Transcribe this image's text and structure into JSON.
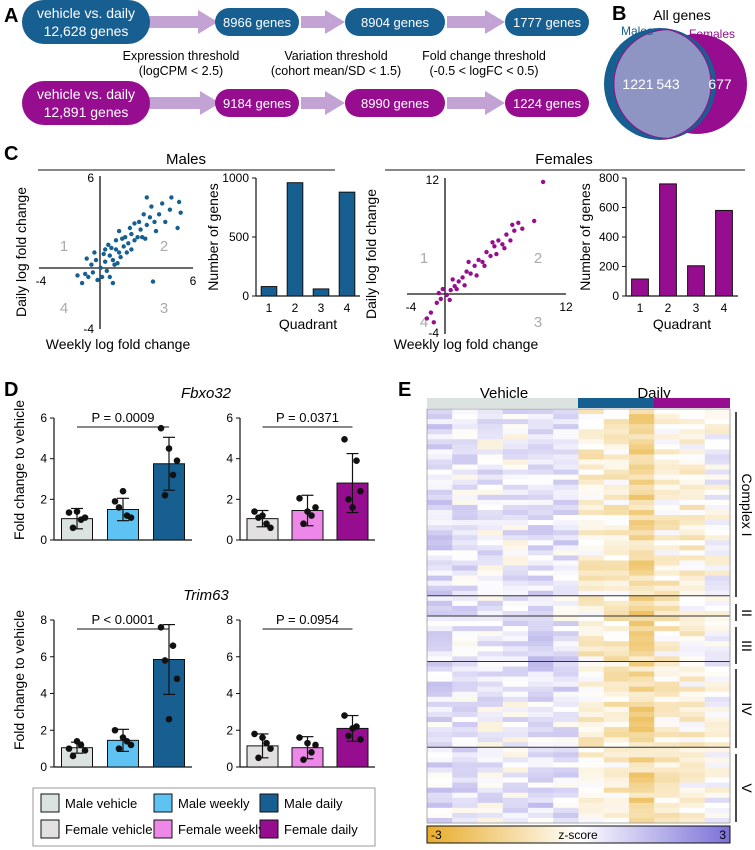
{
  "colors": {
    "male": "#175f91",
    "female": "#960e8f",
    "male_light": "#5ec2f2",
    "female_light": "#ee88e8",
    "vehicle_male": "#dbe3e1",
    "vehicle_female": "#e3e0e1",
    "arrow": "#c3a3d4",
    "overlap": "#8f95c2",
    "axis": "#111111",
    "quadrant_label": "#aaaaaa",
    "heat_low": "#e8ac2a",
    "heat_mid": "#ffffff",
    "heat_high": "#7a70d8"
  },
  "panelA": {
    "label": "A",
    "rows": [
      {
        "key": "male",
        "start_line1": "vehicle vs. daily",
        "start_line2": "12,628 genes",
        "steps": [
          "8966 genes",
          "8904 genes",
          "1777 genes"
        ]
      },
      {
        "key": "female",
        "start_line1": "vehicle vs. daily",
        "start_line2": "12,891 genes",
        "steps": [
          "9184 genes",
          "8990 genes",
          "1224 genes"
        ]
      }
    ],
    "thresholds": [
      {
        "line1": "Expression threshold",
        "line2": "(logCPM < 2.5)"
      },
      {
        "line1": "Variation threshold",
        "line2": "(cohort mean/SD < 1.5)"
      },
      {
        "line1": "Fold change threshold",
        "line2": "(-0.5 < logFC < 0.5)"
      }
    ]
  },
  "panelB": {
    "label": "B",
    "title": "All genes",
    "males_label": "Males",
    "females_label": "Females",
    "male_only": "1221",
    "overlap": "543",
    "female_only": "677"
  },
  "panelC": {
    "label": "C",
    "groups": [
      {
        "title": "Males",
        "scatter": {
          "xlabel": "Weekly log fold change",
          "ylabel": "Daily log fold change",
          "x_ticks": [
            "-4",
            "6"
          ],
          "y_ticks": [
            "6",
            "-4"
          ],
          "quadrants": [
            "1",
            "2",
            "3",
            "4"
          ]
        }
      },
      {
        "title": "Females",
        "scatter": {
          "xlabel": "Weekly log fold change",
          "ylabel": "Daily log fold change",
          "x_ticks": [
            "-4",
            "12"
          ],
          "y_ticks": [
            "12",
            "-4"
          ],
          "quadrants": [
            "1",
            "2",
            "3",
            "4"
          ]
        }
      }
    ]
  },
  "panelD": {
    "label": "D",
    "genes": [
      "Fbxo32",
      "Trim63"
    ],
    "ylabel": "Fold change to vehicle",
    "legend": [
      "Male vehicle",
      "Male weekly",
      "Male daily",
      "Female vehicle",
      "Female weekly",
      "Female daily"
    ]
  },
  "panelE": {
    "label": "E",
    "header_vehicle": "Vehicle",
    "header_daily": "Daily",
    "complexes": [
      "Complex I",
      "II",
      "III",
      "IV",
      "V"
    ],
    "colorbar": {
      "min_label": "-3",
      "title": "z-score",
      "max_label": "3"
    }
  },
  "chart_data": [
    {
      "type": "scatter",
      "id": "males-scatter",
      "xlabel": "Weekly log fold change",
      "ylabel": "Daily log fold change",
      "xlim": [
        -4,
        6
      ],
      "ylim": [
        -4,
        6
      ],
      "quadrant_labels": [
        "1",
        "2",
        "3",
        "4"
      ],
      "points": [
        [
          0,
          0
        ],
        [
          0.3,
          0.4
        ],
        [
          -0.5,
          -0.3
        ],
        [
          0.6,
          0.8
        ],
        [
          1.0,
          1.2
        ],
        [
          0.8,
          0.5
        ],
        [
          -0.8,
          -0.6
        ],
        [
          0.4,
          -0.2
        ],
        [
          -0.3,
          0.5
        ],
        [
          1.2,
          1.0
        ],
        [
          1.5,
          1.4
        ],
        [
          1.8,
          1.6
        ],
        [
          2.0,
          2.2
        ],
        [
          2.2,
          1.8
        ],
        [
          1.0,
          1.8
        ],
        [
          0.5,
          1.5
        ],
        [
          -0.2,
          -0.8
        ],
        [
          -1.0,
          -0.4
        ],
        [
          0.2,
          0.9
        ],
        [
          0.9,
          0.2
        ],
        [
          1.3,
          0.7
        ],
        [
          0.7,
          1.3
        ],
        [
          1.6,
          2.0
        ],
        [
          2.4,
          2.0
        ],
        [
          2.6,
          2.5
        ],
        [
          3.0,
          2.8
        ],
        [
          3.2,
          3.3
        ],
        [
          3.5,
          3.0
        ],
        [
          3.8,
          3.5
        ],
        [
          4.0,
          4.2
        ],
        [
          4.5,
          3.8
        ],
        [
          2.8,
          3.5
        ],
        [
          3.3,
          4.0
        ],
        [
          1.9,
          2.6
        ],
        [
          2.5,
          3.0
        ],
        [
          5.2,
          3.6
        ],
        [
          3.4,
          -0.9
        ],
        [
          5.1,
          4.3
        ],
        [
          3.0,
          4.6
        ],
        [
          2.2,
          2.9
        ],
        [
          -0.6,
          0.2
        ],
        [
          -0.9,
          0.6
        ],
        [
          0.1,
          -0.6
        ],
        [
          -1.2,
          -1.0
        ],
        [
          0.6,
          -0.6
        ],
        [
          1.1,
          0.3
        ],
        [
          1.4,
          1.9
        ],
        [
          2.0,
          1.2
        ],
        [
          2.7,
          2.0
        ],
        [
          4.2,
          3.0
        ],
        [
          -0.4,
          1.0
        ],
        [
          0.3,
          1.2
        ],
        [
          1.7,
          1.0
        ],
        [
          1.2,
          2.4
        ],
        [
          3.6,
          2.4
        ],
        [
          2.9,
          1.9
        ],
        [
          4.6,
          4.6
        ],
        [
          5.0,
          2.6
        ],
        [
          -1.5,
          -0.5
        ],
        [
          0.8,
          -1.0
        ]
      ]
    },
    {
      "type": "bar",
      "id": "males-quadrant-bar",
      "categories": [
        "1",
        "2",
        "3",
        "4"
      ],
      "values": [
        80,
        960,
        60,
        880
      ],
      "xlabel": "Quadrant",
      "ylabel": "Number of genes",
      "ylim": [
        0,
        1000
      ],
      "yticks": [
        0,
        500,
        1000
      ]
    },
    {
      "type": "scatter",
      "id": "females-scatter",
      "xlabel": "Weekly log fold change",
      "ylabel": "Daily log fold change",
      "xlim": [
        -4,
        12
      ],
      "ylim": [
        -4,
        12
      ],
      "quadrant_labels": [
        "1",
        "2",
        "3",
        "4"
      ],
      "points": [
        [
          0,
          0
        ],
        [
          0.4,
          0.5
        ],
        [
          -0.6,
          -0.4
        ],
        [
          0.8,
          0.9
        ],
        [
          1.2,
          1.4
        ],
        [
          1.6,
          1.8
        ],
        [
          2.0,
          2.4
        ],
        [
          2.4,
          2.2
        ],
        [
          -1.0,
          -0.8
        ],
        [
          0.3,
          -0.5
        ],
        [
          -0.4,
          0.6
        ],
        [
          1.0,
          0.6
        ],
        [
          2.8,
          3.0
        ],
        [
          3.2,
          3.6
        ],
        [
          3.6,
          3.4
        ],
        [
          4.0,
          4.4
        ],
        [
          4.4,
          4.0
        ],
        [
          4.8,
          5.0
        ],
        [
          5.2,
          5.6
        ],
        [
          5.6,
          5.2
        ],
        [
          6.0,
          6.2
        ],
        [
          6.4,
          5.6
        ],
        [
          6.8,
          6.6
        ],
        [
          7.2,
          7.4
        ],
        [
          2.2,
          3.4
        ],
        [
          3.0,
          2.0
        ],
        [
          5.0,
          4.2
        ],
        [
          6.6,
          7.2
        ],
        [
          8.8,
          7.6
        ],
        [
          9.7,
          11.6
        ],
        [
          -1.6,
          -1.8
        ],
        [
          -2.0,
          -2.4
        ],
        [
          -0.8,
          0.2
        ],
        [
          0.6,
          1.6
        ],
        [
          1.8,
          1.0
        ],
        [
          3.8,
          3.0
        ],
        [
          4.6,
          5.4
        ],
        [
          5.8,
          4.8
        ],
        [
          7.6,
          6.8
        ],
        [
          -1.3,
          -2.8
        ]
      ]
    },
    {
      "type": "bar",
      "id": "females-quadrant-bar",
      "categories": [
        "1",
        "2",
        "3",
        "4"
      ],
      "values": [
        115,
        760,
        205,
        580
      ],
      "xlabel": "Quadrant",
      "ylabel": "Number of genes",
      "ylim": [
        0,
        800
      ],
      "yticks": [
        0,
        200,
        400,
        600,
        800
      ]
    },
    {
      "type": "bar",
      "id": "fbxo32-male",
      "title": "Fbxo32",
      "categories": [
        "Male vehicle",
        "Male weekly",
        "Male daily"
      ],
      "values": [
        1.05,
        1.5,
        3.75
      ],
      "sd": [
        0.5,
        0.55,
        1.3
      ],
      "points": [
        [
          1.35,
          1.0,
          0.6,
          1.1,
          1.4
        ],
        [
          1.9,
          1.2,
          1.6,
          1.1,
          2.4
        ],
        [
          5.5,
          3.2,
          2.2,
          3.9,
          4.5
        ]
      ],
      "ylabel": "Fold change to vehicle",
      "ylim": [
        0,
        6
      ],
      "yticks": [
        0,
        2,
        4,
        6
      ],
      "annotation": "P = 0.0009"
    },
    {
      "type": "bar",
      "id": "fbxo32-female",
      "title": "Fbxo32",
      "categories": [
        "Female vehicle",
        "Female weekly",
        "Female daily"
      ],
      "values": [
        1.05,
        1.45,
        2.8
      ],
      "sd": [
        0.4,
        0.75,
        1.45
      ],
      "points": [
        [
          1.4,
          0.8,
          1.1,
          0.6,
          1.2
        ],
        [
          2.05,
          1.2,
          0.8,
          1.6,
          1.4
        ],
        [
          4.95,
          3.9,
          2.0,
          2.4,
          1.6
        ]
      ],
      "ylabel": "",
      "ylim": [
        0,
        6
      ],
      "yticks": [
        0,
        2,
        4,
        6
      ],
      "annotation": "P = 0.0371"
    },
    {
      "type": "bar",
      "id": "trim63-male",
      "title": "Trim63",
      "categories": [
        "Male vehicle",
        "Male weekly",
        "Male daily"
      ],
      "values": [
        1.05,
        1.45,
        5.85
      ],
      "sd": [
        0.3,
        0.6,
        1.9
      ],
      "points": [
        [
          1.0,
          1.2,
          0.6,
          0.9,
          1.4
        ],
        [
          2.0,
          1.4,
          1.0,
          1.2,
          1.6
        ],
        [
          7.6,
          6.6,
          5.8,
          4.8,
          2.6
        ]
      ],
      "ylabel": "Fold change to vehicle",
      "ylim": [
        0,
        8
      ],
      "yticks": [
        0,
        2,
        4,
        6,
        8
      ],
      "annotation": "P < 0.0001"
    },
    {
      "type": "bar",
      "id": "trim63-female",
      "title": "Trim63",
      "categories": [
        "Female vehicle",
        "Female weekly",
        "Female daily"
      ],
      "values": [
        1.15,
        1.05,
        2.1
      ],
      "sd": [
        0.65,
        0.6,
        0.7
      ],
      "points": [
        [
          1.8,
          1.3,
          0.5,
          1.0,
          1.6
        ],
        [
          1.6,
          0.8,
          0.4,
          1.2,
          1.3
        ],
        [
          2.8,
          2.2,
          1.7,
          1.5,
          2.1
        ]
      ],
      "ylabel": "",
      "ylim": [
        0,
        8
      ],
      "yticks": [
        0,
        2,
        4,
        6,
        8
      ],
      "annotation": "P = 0.0954"
    },
    {
      "type": "heatmap",
      "id": "oxphos-heatmap",
      "columns": [
        "Vehicle",
        "Vehicle",
        "Vehicle",
        "Vehicle",
        "Vehicle",
        "Vehicle",
        "Daily",
        "Daily",
        "Daily",
        "Daily",
        "Daily",
        "Daily"
      ],
      "column_mean_z": [
        0.6,
        0.5,
        0.3,
        0.3,
        0.7,
        0.5,
        -0.5,
        -0.6,
        -1.4,
        -0.5,
        -0.4,
        0.0
      ],
      "row_groups": [
        {
          "name": "Complex I",
          "rows": 37
        },
        {
          "name": "II",
          "rows": 4
        },
        {
          "name": "III",
          "rows": 9
        },
        {
          "name": "IV",
          "rows": 17
        },
        {
          "name": "V",
          "rows": 15
        }
      ],
      "zlim": [
        -3,
        3
      ]
    }
  ]
}
